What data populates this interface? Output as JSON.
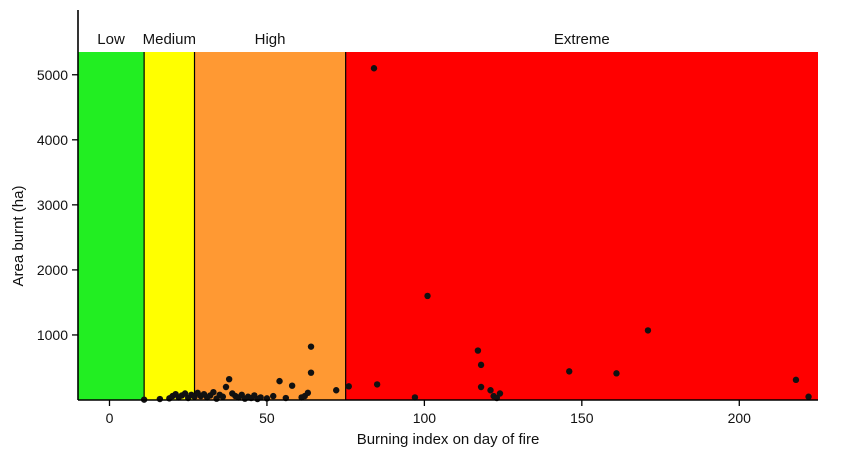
{
  "chart_data": {
    "type": "scatter",
    "title": "",
    "xlabel": "Burning index on day of fire",
    "ylabel": "Area burnt (ha)",
    "xlim": [
      -10,
      225
    ],
    "ylim": [
      0,
      5350
    ],
    "xticks": [
      0,
      50,
      100,
      150,
      200
    ],
    "yticks": [
      1000,
      2000,
      3000,
      4000,
      5000
    ],
    "grid": false,
    "zones": [
      {
        "label": "Low",
        "from": -10,
        "to": 11,
        "color": "#22ee22"
      },
      {
        "label": "Medium",
        "from": 11,
        "to": 27,
        "color": "#ffff00"
      },
      {
        "label": "High",
        "from": 27,
        "to": 75,
        "color": "#ff9933"
      },
      {
        "label": "Extreme",
        "from": 75,
        "to": 225,
        "color": "#ff0000"
      }
    ],
    "points": [
      {
        "x": 11,
        "y": 5
      },
      {
        "x": 16,
        "y": 15
      },
      {
        "x": 19,
        "y": 25
      },
      {
        "x": 20,
        "y": 60
      },
      {
        "x": 21,
        "y": 90
      },
      {
        "x": 22,
        "y": 40
      },
      {
        "x": 23,
        "y": 70
      },
      {
        "x": 24,
        "y": 100
      },
      {
        "x": 25,
        "y": 30
      },
      {
        "x": 26,
        "y": 80
      },
      {
        "x": 27,
        "y": 50
      },
      {
        "x": 28,
        "y": 110
      },
      {
        "x": 29,
        "y": 60
      },
      {
        "x": 30,
        "y": 90
      },
      {
        "x": 31,
        "y": 40
      },
      {
        "x": 32,
        "y": 70
      },
      {
        "x": 33,
        "y": 120
      },
      {
        "x": 34,
        "y": 20
      },
      {
        "x": 35,
        "y": 80
      },
      {
        "x": 36,
        "y": 50
      },
      {
        "x": 37,
        "y": 200
      },
      {
        "x": 38,
        "y": 320
      },
      {
        "x": 39,
        "y": 100
      },
      {
        "x": 40,
        "y": 60
      },
      {
        "x": 41,
        "y": 40
      },
      {
        "x": 42,
        "y": 80
      },
      {
        "x": 43,
        "y": 20
      },
      {
        "x": 44,
        "y": 50
      },
      {
        "x": 45,
        "y": 30
      },
      {
        "x": 46,
        "y": 70
      },
      {
        "x": 47,
        "y": 15
      },
      {
        "x": 48,
        "y": 40
      },
      {
        "x": 50,
        "y": 25
      },
      {
        "x": 52,
        "y": 60
      },
      {
        "x": 54,
        "y": 290
      },
      {
        "x": 56,
        "y": 30
      },
      {
        "x": 58,
        "y": 220
      },
      {
        "x": 61,
        "y": 40
      },
      {
        "x": 62,
        "y": 60
      },
      {
        "x": 63,
        "y": 110
      },
      {
        "x": 64,
        "y": 420
      },
      {
        "x": 64,
        "y": 820
      },
      {
        "x": 72,
        "y": 150
      },
      {
        "x": 76,
        "y": 210
      },
      {
        "x": 84,
        "y": 5100
      },
      {
        "x": 85,
        "y": 240
      },
      {
        "x": 97,
        "y": 40
      },
      {
        "x": 101,
        "y": 1600
      },
      {
        "x": 117,
        "y": 760
      },
      {
        "x": 118,
        "y": 540
      },
      {
        "x": 118,
        "y": 200
      },
      {
        "x": 121,
        "y": 150
      },
      {
        "x": 122,
        "y": 60
      },
      {
        "x": 123,
        "y": 30
      },
      {
        "x": 124,
        "y": 100
      },
      {
        "x": 146,
        "y": 440
      },
      {
        "x": 161,
        "y": 410
      },
      {
        "x": 171,
        "y": 1070
      },
      {
        "x": 218,
        "y": 310
      },
      {
        "x": 222,
        "y": 50
      }
    ]
  }
}
